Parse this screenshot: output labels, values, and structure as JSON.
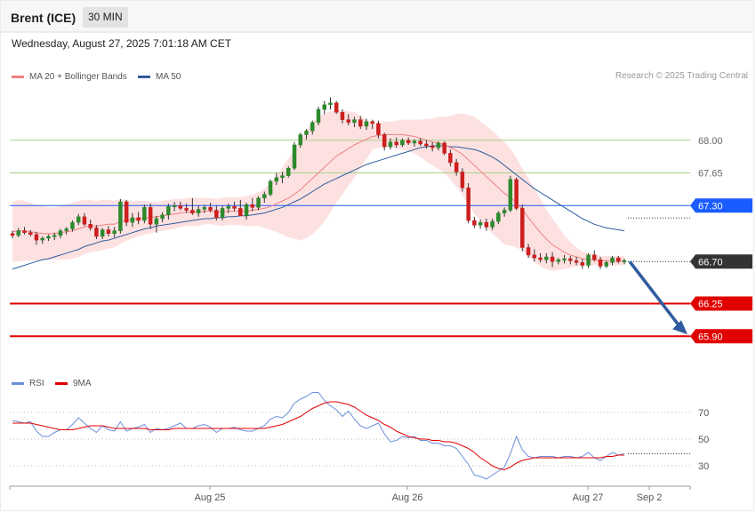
{
  "header": {
    "instrument": "Brent (ICE)",
    "timeframe": "30 MIN"
  },
  "datetime": "Wednesday, August 27, 2025 7:01:18 AM CET",
  "legend": {
    "ma20": {
      "label": "MA 20 + Bollinger Bands",
      "color": "#f08080"
    },
    "ma50": {
      "label": "MA 50",
      "color": "#2f5c9e"
    },
    "rsi": {
      "label": "RSI",
      "color": "#6b8fdc"
    },
    "rsi9": {
      "label": "9MA",
      "color": "#e00000"
    }
  },
  "copyright": "Research © 2025 Trading Central",
  "chart_data": [
    {
      "type": "candlestick",
      "ylim": [
        65.55,
        68.55
      ],
      "x_ticks": [
        "Aug 25",
        "Aug 26",
        "Aug 27",
        "Sep 2"
      ],
      "levels": [
        {
          "value": 68.0,
          "label": "68.00",
          "style": "support-line",
          "color": "#a9cf88"
        },
        {
          "value": 67.65,
          "label": "67.65",
          "style": "support-line",
          "color": "#a9cf88"
        },
        {
          "value": 67.3,
          "label": "67.30",
          "style": "badge",
          "color": "#1a5cff"
        },
        {
          "value": 66.7,
          "label": "66.70",
          "style": "badge",
          "color": "#333333"
        },
        {
          "value": 66.25,
          "label": "66.25",
          "style": "badge",
          "color": "#e00000"
        },
        {
          "value": 65.9,
          "label": "65.90",
          "style": "badge",
          "color": "#e00000"
        }
      ],
      "forecast": {
        "from": 66.7,
        "to": 65.9,
        "color": "#2f5c9e"
      },
      "candles": [
        [
          67.0,
          67.03,
          66.95,
          66.98
        ],
        [
          66.98,
          67.06,
          66.96,
          67.03
        ],
        [
          67.03,
          67.07,
          66.99,
          67.01
        ],
        [
          67.01,
          67.04,
          66.97,
          66.99
        ],
        [
          66.99,
          67.02,
          66.88,
          66.93
        ],
        [
          66.93,
          66.97,
          66.89,
          66.95
        ],
        [
          66.95,
          66.99,
          66.92,
          66.97
        ],
        [
          66.97,
          67.01,
          66.93,
          66.98
        ],
        [
          66.98,
          67.05,
          66.95,
          67.03
        ],
        [
          67.03,
          67.07,
          66.99,
          67.05
        ],
        [
          67.05,
          67.14,
          67.02,
          67.12
        ],
        [
          67.12,
          67.21,
          67.09,
          67.18
        ],
        [
          67.18,
          67.22,
          67.08,
          67.1
        ],
        [
          67.1,
          67.15,
          67.03,
          67.06
        ],
        [
          67.06,
          67.09,
          66.94,
          66.97
        ],
        [
          66.97,
          67.06,
          66.94,
          67.04
        ],
        [
          67.04,
          67.08,
          66.97,
          67.0
        ],
        [
          67.0,
          67.07,
          66.96,
          67.03
        ],
        [
          67.03,
          67.37,
          67.0,
          67.34
        ],
        [
          67.34,
          67.36,
          67.08,
          67.12
        ],
        [
          67.12,
          67.22,
          67.07,
          67.17
        ],
        [
          67.17,
          67.23,
          67.1,
          67.14
        ],
        [
          67.14,
          67.31,
          67.11,
          67.28
        ],
        [
          67.28,
          67.32,
          67.05,
          67.1
        ],
        [
          67.1,
          67.19,
          67.01,
          67.16
        ],
        [
          67.16,
          67.23,
          67.12,
          67.2
        ],
        [
          67.2,
          67.32,
          67.15,
          67.29
        ],
        [
          67.29,
          67.34,
          67.24,
          67.3
        ],
        [
          67.3,
          67.34,
          67.25,
          67.27
        ],
        [
          67.27,
          67.32,
          67.22,
          67.25
        ],
        [
          67.25,
          67.38,
          67.2,
          67.22
        ],
        [
          67.22,
          67.3,
          67.18,
          67.26
        ],
        [
          67.26,
          67.31,
          67.22,
          67.28
        ],
        [
          67.28,
          67.33,
          67.23,
          67.25
        ],
        [
          67.25,
          67.3,
          67.14,
          67.17
        ],
        [
          67.17,
          67.3,
          67.14,
          67.27
        ],
        [
          67.27,
          67.32,
          67.22,
          67.29
        ],
        [
          67.29,
          67.34,
          67.24,
          67.27
        ],
        [
          67.27,
          67.36,
          67.21,
          67.19
        ],
        [
          67.19,
          67.33,
          67.15,
          67.31
        ],
        [
          67.31,
          67.38,
          67.24,
          67.28
        ],
        [
          67.28,
          67.4,
          67.25,
          67.38
        ],
        [
          67.38,
          67.45,
          67.33,
          67.42
        ],
        [
          67.42,
          67.58,
          67.4,
          67.56
        ],
        [
          67.56,
          67.65,
          67.52,
          67.6
        ],
        [
          67.6,
          67.66,
          67.54,
          67.62
        ],
        [
          67.62,
          67.72,
          67.6,
          67.7
        ],
        [
          67.7,
          67.98,
          67.68,
          67.95
        ],
        [
          67.95,
          68.08,
          67.92,
          68.06
        ],
        [
          68.06,
          68.12,
          68.01,
          68.1
        ],
        [
          68.1,
          68.21,
          68.06,
          68.19
        ],
        [
          68.19,
          68.36,
          68.16,
          68.33
        ],
        [
          68.33,
          68.42,
          68.28,
          68.38
        ],
        [
          68.38,
          68.46,
          68.33,
          68.4
        ],
        [
          68.4,
          68.42,
          68.28,
          68.3
        ],
        [
          68.3,
          68.33,
          68.18,
          68.22
        ],
        [
          68.22,
          68.28,
          68.16,
          68.19
        ],
        [
          68.19,
          68.25,
          68.14,
          68.22
        ],
        [
          68.22,
          68.26,
          68.12,
          68.15
        ],
        [
          68.15,
          68.23,
          68.11,
          68.2
        ],
        [
          68.2,
          68.22,
          68.12,
          68.18
        ],
        [
          68.18,
          68.21,
          68.02,
          68.06
        ],
        [
          68.06,
          68.08,
          67.89,
          67.93
        ],
        [
          67.93,
          68.02,
          67.9,
          67.98
        ],
        [
          67.98,
          68.03,
          67.92,
          67.95
        ],
        [
          67.95,
          68.02,
          67.93,
          68.0
        ],
        [
          68.0,
          68.03,
          67.95,
          67.97
        ],
        [
          67.97,
          68.01,
          67.93,
          67.99
        ],
        [
          67.99,
          68.02,
          67.94,
          67.96
        ],
        [
          67.96,
          68.0,
          67.91,
          67.94
        ],
        [
          67.94,
          67.98,
          67.88,
          67.92
        ],
        [
          67.92,
          67.99,
          67.89,
          67.97
        ],
        [
          67.97,
          67.99,
          67.84,
          67.86
        ],
        [
          67.86,
          67.9,
          67.72,
          67.76
        ],
        [
          67.76,
          67.8,
          67.62,
          67.66
        ],
        [
          67.66,
          67.7,
          67.45,
          67.49
        ],
        [
          67.49,
          67.54,
          67.11,
          67.14
        ],
        [
          67.14,
          67.18,
          67.06,
          67.09
        ],
        [
          67.09,
          67.15,
          67.05,
          67.12
        ],
        [
          67.12,
          67.16,
          67.03,
          67.07
        ],
        [
          67.07,
          67.16,
          67.04,
          67.13
        ],
        [
          67.13,
          67.24,
          67.1,
          67.22
        ],
        [
          67.22,
          67.28,
          67.18,
          67.25
        ],
        [
          67.25,
          67.62,
          67.23,
          67.58
        ],
        [
          67.58,
          67.6,
          67.25,
          67.27
        ],
        [
          67.27,
          67.31,
          66.81,
          66.85
        ],
        [
          66.85,
          66.89,
          66.74,
          66.77
        ],
        [
          66.77,
          66.83,
          66.7,
          66.74
        ],
        [
          66.74,
          66.79,
          66.69,
          66.72
        ],
        [
          66.72,
          66.79,
          66.68,
          66.75
        ],
        [
          66.75,
          66.8,
          66.64,
          66.7
        ],
        [
          66.7,
          66.74,
          66.67,
          66.72
        ],
        [
          66.72,
          66.77,
          66.68,
          66.73
        ],
        [
          66.73,
          66.76,
          66.67,
          66.71
        ],
        [
          66.71,
          66.75,
          66.66,
          66.69
        ],
        [
          66.69,
          66.73,
          66.62,
          66.66
        ],
        [
          66.66,
          66.79,
          66.63,
          66.77
        ],
        [
          66.77,
          66.82,
          66.7,
          66.72
        ],
        [
          66.72,
          66.75,
          66.62,
          66.65
        ],
        [
          66.65,
          66.71,
          66.63,
          66.69
        ],
        [
          66.69,
          66.76,
          66.66,
          66.74
        ],
        [
          66.74,
          66.76,
          66.68,
          66.7
        ],
        [
          66.7,
          66.73,
          66.67,
          66.71
        ]
      ],
      "ma20": [
        67.02,
        67.03,
        67.03,
        67.02,
        67.01,
        67.0,
        67.0,
        67.0,
        67.01,
        67.02,
        67.03,
        67.05,
        67.07,
        67.08,
        67.08,
        67.09,
        67.1,
        67.1,
        67.13,
        67.14,
        67.15,
        67.16,
        67.17,
        67.17,
        67.18,
        67.19,
        67.2,
        67.21,
        67.22,
        67.23,
        67.23,
        67.23,
        67.24,
        67.24,
        67.23,
        67.23,
        67.24,
        67.24,
        67.24,
        67.24,
        67.25,
        67.26,
        67.27,
        67.29,
        67.32,
        67.35,
        67.38,
        67.42,
        67.47,
        67.53,
        67.59,
        67.65,
        67.71,
        67.77,
        67.83,
        67.87,
        67.91,
        67.95,
        67.98,
        68.01,
        68.04,
        68.05,
        68.06,
        68.06,
        68.06,
        68.06,
        68.05,
        68.04,
        68.02,
        68.0,
        67.98,
        67.97,
        67.95,
        67.92,
        67.89,
        67.85,
        67.79,
        67.73,
        67.67,
        67.61,
        67.55,
        67.49,
        67.43,
        67.39,
        67.33,
        67.26,
        67.17,
        67.09,
        67.01,
        66.94,
        66.88,
        66.84,
        66.8,
        66.77,
        66.75,
        66.73,
        66.72,
        66.72,
        66.71,
        66.71,
        66.71,
        66.71,
        66.71
      ],
      "ma50": [
        66.62,
        66.64,
        66.66,
        66.68,
        66.7,
        66.72,
        66.73,
        66.75,
        66.77,
        66.79,
        66.81,
        66.83,
        66.86,
        66.88,
        66.9,
        66.92,
        66.93,
        66.95,
        66.97,
        66.99,
        67.01,
        67.03,
        67.05,
        67.06,
        67.08,
        67.09,
        67.1,
        67.11,
        67.12,
        67.13,
        67.14,
        67.15,
        67.16,
        67.16,
        67.17,
        67.17,
        67.18,
        67.18,
        67.19,
        67.19,
        67.2,
        67.21,
        67.22,
        67.24,
        67.26,
        67.28,
        67.31,
        67.34,
        67.37,
        67.41,
        67.45,
        67.49,
        67.53,
        67.56,
        67.59,
        67.62,
        67.65,
        67.68,
        67.71,
        67.74,
        67.76,
        67.78,
        67.8,
        67.82,
        67.84,
        67.86,
        67.88,
        67.9,
        67.92,
        67.93,
        67.94,
        67.94,
        67.94,
        67.93,
        67.93,
        67.92,
        67.91,
        67.9,
        67.88,
        67.85,
        67.82,
        67.78,
        67.73,
        67.68,
        67.63,
        67.58,
        67.53,
        67.48,
        67.44,
        67.4,
        67.36,
        67.32,
        67.28,
        67.24,
        67.2,
        67.16,
        67.13,
        67.1,
        67.08,
        67.06,
        67.05,
        67.04,
        67.03
      ],
      "bb_width": [
        0.32,
        0.33,
        0.32,
        0.31,
        0.3,
        0.29,
        0.28,
        0.28,
        0.29,
        0.3,
        0.3,
        0.3,
        0.29,
        0.28,
        0.27,
        0.27,
        0.26,
        0.25,
        0.24,
        0.22,
        0.2,
        0.19,
        0.18,
        0.17,
        0.16,
        0.16,
        0.16,
        0.16,
        0.15,
        0.15,
        0.15,
        0.15,
        0.14,
        0.14,
        0.14,
        0.15,
        0.15,
        0.15,
        0.15,
        0.16,
        0.17,
        0.18,
        0.21,
        0.25,
        0.3,
        0.36,
        0.42,
        0.48,
        0.54,
        0.58,
        0.6,
        0.6,
        0.58,
        0.54,
        0.5,
        0.45,
        0.4,
        0.35,
        0.28,
        0.21,
        0.14,
        0.13,
        0.14,
        0.14,
        0.15,
        0.16,
        0.17,
        0.18,
        0.2,
        0.23,
        0.25,
        0.28,
        0.3,
        0.34,
        0.39,
        0.44,
        0.48,
        0.52,
        0.53,
        0.54,
        0.55,
        0.55,
        0.55,
        0.52,
        0.48,
        0.44,
        0.42,
        0.39,
        0.36,
        0.32,
        0.28,
        0.23,
        0.18,
        0.14,
        0.1,
        0.08,
        0.07,
        0.06,
        0.05,
        0.05,
        0.05,
        0.05,
        0.05
      ]
    },
    {
      "type": "line",
      "series_names": [
        "RSI",
        "9MA"
      ],
      "ylim": [
        16,
        86
      ],
      "y_ticks": [
        70,
        50,
        30
      ],
      "rsi": [
        64,
        63,
        62,
        63,
        56,
        52,
        52,
        55,
        57,
        57,
        61,
        66,
        62,
        58,
        55,
        60,
        57,
        56,
        63,
        56,
        58,
        59,
        61,
        55,
        58,
        57,
        58,
        60,
        62,
        58,
        58,
        60,
        61,
        59,
        55,
        58,
        58,
        59,
        57,
        56,
        56,
        58,
        60,
        65,
        67,
        66,
        70,
        77,
        80,
        82,
        85,
        85,
        79,
        75,
        72,
        67,
        71,
        65,
        60,
        58,
        60,
        62,
        54,
        48,
        49,
        52,
        51,
        52,
        49,
        49,
        47,
        47,
        45,
        45,
        43,
        37,
        31,
        23,
        22,
        20,
        23,
        26,
        29,
        39,
        52,
        42,
        37,
        36,
        37,
        37,
        37,
        36,
        37,
        37,
        36,
        37,
        40,
        36,
        34,
        37,
        40,
        38,
        39
      ],
      "ma9": [
        62,
        62,
        62,
        62,
        61,
        60,
        59,
        58,
        57,
        57,
        57,
        58,
        59,
        60,
        60,
        60,
        59,
        58,
        58,
        58,
        58,
        58,
        58,
        57,
        57,
        57,
        57,
        58,
        58,
        58,
        58,
        58,
        58,
        58,
        58,
        58,
        58,
        58,
        58,
        58,
        58,
        58,
        58,
        59,
        60,
        61,
        63,
        65,
        67,
        70,
        73,
        75,
        77,
        78,
        78,
        77,
        76,
        74,
        71,
        68,
        66,
        64,
        61,
        59,
        56,
        54,
        52,
        51,
        50,
        50,
        49,
        49,
        48,
        48,
        47,
        45,
        43,
        40,
        36,
        33,
        30,
        28,
        27,
        29,
        32,
        34,
        35,
        36,
        36,
        36,
        36,
        36,
        36,
        36,
        36,
        36,
        36,
        36,
        36,
        37,
        37,
        38,
        38
      ]
    }
  ]
}
